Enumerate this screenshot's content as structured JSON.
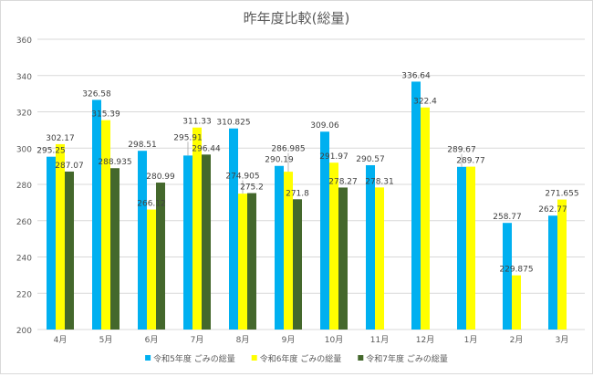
{
  "chart_data": {
    "type": "bar",
    "title": "昨年度比較(総量)",
    "categories": [
      "4月",
      "5月",
      "6月",
      "7月",
      "8月",
      "9月",
      "10月",
      "11月",
      "12月",
      "1月",
      "2月",
      "3月"
    ],
    "series": [
      {
        "name": "令和5年度 ごみの総量",
        "color": "#00b0f0",
        "values": [
          295.25,
          326.58,
          298.51,
          295.91,
          310.825,
          290.19,
          309.06,
          290.57,
          336.64,
          289.67,
          258.77,
          262.77
        ]
      },
      {
        "name": "令和6年度 ごみの総量",
        "color": "#ffff00",
        "values": [
          302.17,
          315.39,
          266.12,
          311.33,
          274.905,
          286.985,
          291.97,
          278.31,
          322.4,
          289.77,
          229.875,
          271.655
        ]
      },
      {
        "name": "令和7年度 ごみの総量",
        "color": "#44682c",
        "values": [
          287.07,
          288.935,
          280.99,
          296.44,
          275.2,
          271.8,
          278.27,
          null,
          null,
          null,
          null,
          null
        ]
      }
    ],
    "ylim": [
      200,
      360
    ],
    "yticks": [
      200,
      220,
      240,
      260,
      280,
      300,
      320,
      340,
      360
    ],
    "grid": true,
    "legend": "bottom",
    "data_labels": true
  }
}
